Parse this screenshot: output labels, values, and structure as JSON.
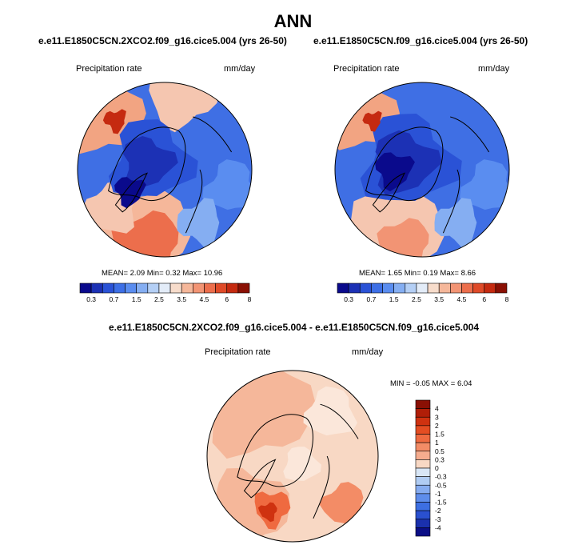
{
  "chart_data": {
    "type": "contour-map",
    "title": "ANN",
    "panels": [
      {
        "title": "e.e11.E1850C5CN.2XCO2.f09_g16.cice5.004 (yrs 26-50)",
        "variable": "Precipitation rate",
        "units": "mm/day",
        "projection": "north polar stereographic",
        "mean_label": "MEAN=",
        "mean": "2.09",
        "min_label": "Min=",
        "min": "0.32",
        "max_label": "Max=",
        "max": "10.96",
        "colorbar": {
          "orientation": "horizontal",
          "levels": [
            "0.3",
            "0.7",
            "1.5",
            "2.5",
            "3.5",
            "4.5",
            "6",
            "8"
          ],
          "colors": [
            "#0a0a8c",
            "#1c31b5",
            "#2a52d6",
            "#3d6fe6",
            "#5a8df0",
            "#85aef2",
            "#b4cff5",
            "#e3ecf8",
            "#f7dccb",
            "#f5b79a",
            "#f29474",
            "#ec6e4c",
            "#df4a28",
            "#c52a10",
            "#8a1004"
          ]
        }
      },
      {
        "title": "e.e11.E1850C5CN.f09_g16.cice5.004 (yrs 26-50)",
        "variable": "Precipitation rate",
        "units": "mm/day",
        "projection": "north polar stereographic",
        "mean_label": "MEAN=",
        "mean": "1.65",
        "min_label": "Min=",
        "min": "0.19",
        "max_label": "Max=",
        "max": "8.66",
        "colorbar": {
          "orientation": "horizontal",
          "levels": [
            "0.3",
            "0.7",
            "1.5",
            "2.5",
            "3.5",
            "4.5",
            "6",
            "8"
          ],
          "colors": [
            "#0a0a8c",
            "#1c31b5",
            "#2a52d6",
            "#3d6fe6",
            "#5a8df0",
            "#85aef2",
            "#b4cff5",
            "#e3ecf8",
            "#f7dccb",
            "#f5b79a",
            "#f29474",
            "#ec6e4c",
            "#df4a28",
            "#c52a10",
            "#8a1004"
          ]
        }
      },
      {
        "title": "e.e11.E1850C5CN.2XCO2.f09_g16.cice5.004 - e.e11.E1850C5CN.f09_g16.cice5.004",
        "variable": "Precipitation rate",
        "units": "mm/day",
        "projection": "north polar stereographic",
        "min_label": "MIN =",
        "min": "-0.05",
        "max_label": "MAX =",
        "max": "6.04",
        "colorbar": {
          "orientation": "vertical",
          "levels": [
            "4",
            "3",
            "2",
            "1.5",
            "1",
            "0.5",
            "0.3",
            "0",
            "-0.3",
            "-0.5",
            "-1",
            "-1.5",
            "-2",
            "-3",
            "-4"
          ],
          "colors": [
            "#8a1004",
            "#b01e08",
            "#cf3210",
            "#e44d22",
            "#ef6a40",
            "#f38c66",
            "#f5ac8e",
            "#f8d8c4",
            "#d8e6f6",
            "#b0ccf3",
            "#86acf0",
            "#5e8deb",
            "#3d6fe2",
            "#2a50cf",
            "#1a30ad",
            "#0b0e86"
          ]
        }
      }
    ]
  }
}
